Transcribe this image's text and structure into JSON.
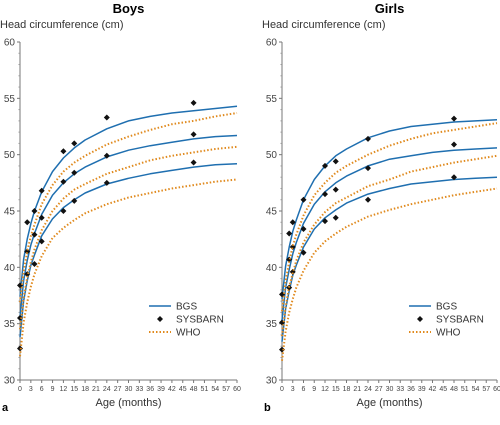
{
  "chart_data": [
    {
      "type": "line",
      "panel_label": "a",
      "title": "Boys",
      "ylabel": "Head circumference (cm)",
      "xlabel": "Age (months)",
      "xlim": [
        0,
        60
      ],
      "ylim": [
        30,
        60
      ],
      "xticks": [
        "0",
        "3",
        "6",
        "9",
        "12",
        "15",
        "18",
        "21",
        "24",
        "27",
        "30",
        "33",
        "36",
        "39",
        "42",
        "45",
        "48",
        "51",
        "54",
        "57",
        "60"
      ],
      "yticks": [
        "30",
        "35",
        "40",
        "45",
        "50",
        "55",
        "60"
      ],
      "grid": false,
      "legend_position": "bottom-right",
      "series": [
        {
          "name": "BGS",
          "style": "solid",
          "color": "#1f6fb0",
          "curves": [
            {
              "x": [
                0,
                1,
                2,
                3,
                4,
                6,
                9,
                12,
                15,
                18,
                24,
                30,
                36,
                42,
                48,
                54,
                60
              ],
              "y": [
                33.8,
                37.0,
                38.8,
                40.2,
                41.1,
                42.8,
                44.3,
                45.3,
                46.0,
                46.6,
                47.4,
                47.9,
                48.3,
                48.6,
                48.9,
                49.1,
                49.2
              ]
            },
            {
              "x": [
                0,
                1,
                2,
                3,
                4,
                6,
                9,
                12,
                15,
                18,
                24,
                30,
                36,
                42,
                48,
                54,
                60
              ],
              "y": [
                35.6,
                38.8,
                40.6,
                42.0,
                43.0,
                44.7,
                46.4,
                47.5,
                48.3,
                48.9,
                49.8,
                50.4,
                50.8,
                51.1,
                51.4,
                51.6,
                51.7
              ]
            },
            {
              "x": [
                0,
                1,
                2,
                3,
                4,
                6,
                9,
                12,
                15,
                18,
                24,
                30,
                36,
                42,
                48,
                54,
                60
              ],
              "y": [
                37.4,
                40.7,
                42.5,
                43.9,
                45.0,
                46.7,
                48.5,
                49.7,
                50.6,
                51.3,
                52.3,
                53.0,
                53.4,
                53.7,
                53.9,
                54.1,
                54.3
              ]
            }
          ]
        },
        {
          "name": "SYSBARN",
          "style": "marker",
          "color": "#111111",
          "points": [
            {
              "x": 0,
              "y": 32.8
            },
            {
              "x": 0,
              "y": 35.5
            },
            {
              "x": 0,
              "y": 38.4
            },
            {
              "x": 2,
              "y": 39.4
            },
            {
              "x": 2,
              "y": 41.4
            },
            {
              "x": 2,
              "y": 44.0
            },
            {
              "x": 4,
              "y": 40.3
            },
            {
              "x": 4,
              "y": 42.9
            },
            {
              "x": 4,
              "y": 45.0
            },
            {
              "x": 6,
              "y": 42.3
            },
            {
              "x": 6,
              "y": 44.4
            },
            {
              "x": 6,
              "y": 46.8
            },
            {
              "x": 12,
              "y": 45.0
            },
            {
              "x": 12,
              "y": 47.6
            },
            {
              "x": 12,
              "y": 50.3
            },
            {
              "x": 15,
              "y": 45.9
            },
            {
              "x": 15,
              "y": 48.4
            },
            {
              "x": 15,
              "y": 51.0
            },
            {
              "x": 24,
              "y": 47.5
            },
            {
              "x": 24,
              "y": 49.9
            },
            {
              "x": 24,
              "y": 53.3
            },
            {
              "x": 48,
              "y": 49.3
            },
            {
              "x": 48,
              "y": 51.8
            },
            {
              "x": 48,
              "y": 54.6
            }
          ]
        },
        {
          "name": "WHO",
          "style": "dotted",
          "color": "#e08a1e",
          "curves": [
            {
              "x": [
                0,
                1,
                2,
                3,
                4,
                6,
                9,
                12,
                15,
                18,
                24,
                30,
                36,
                42,
                48,
                54,
                60
              ],
              "y": [
                32.1,
                35.1,
                36.9,
                38.3,
                39.4,
                41.0,
                42.6,
                43.5,
                44.2,
                44.8,
                45.6,
                46.2,
                46.6,
                47.0,
                47.3,
                47.6,
                47.8
              ]
            },
            {
              "x": [
                0,
                1,
                2,
                3,
                4,
                6,
                9,
                12,
                15,
                18,
                24,
                30,
                36,
                42,
                48,
                54,
                60
              ],
              "y": [
                34.5,
                37.3,
                39.1,
                40.5,
                41.6,
                43.3,
                45.0,
                46.1,
                46.9,
                47.4,
                48.3,
                48.9,
                49.5,
                49.9,
                50.2,
                50.5,
                50.7
              ]
            },
            {
              "x": [
                0,
                1,
                2,
                3,
                4,
                6,
                9,
                12,
                15,
                18,
                24,
                30,
                36,
                42,
                48,
                54,
                60
              ],
              "y": [
                36.9,
                39.6,
                41.4,
                42.8,
                43.8,
                45.6,
                47.3,
                48.5,
                49.3,
                49.9,
                50.9,
                51.6,
                52.2,
                52.7,
                53.0,
                53.4,
                53.7
              ]
            }
          ]
        }
      ]
    },
    {
      "type": "line",
      "panel_label": "b",
      "title": "Girls",
      "ylabel": "Head circumference (cm)",
      "xlabel": "Age (months)",
      "xlim": [
        0,
        60
      ],
      "ylim": [
        30,
        60
      ],
      "xticks": [
        "0",
        "3",
        "6",
        "9",
        "12",
        "15",
        "18",
        "21",
        "24",
        "27",
        "30",
        "33",
        "36",
        "39",
        "42",
        "45",
        "48",
        "51",
        "54",
        "57",
        "60"
      ],
      "yticks": [
        "30",
        "35",
        "40",
        "45",
        "50",
        "55",
        "60"
      ],
      "grid": false,
      "legend_position": "bottom-right",
      "series": [
        {
          "name": "BGS",
          "style": "solid",
          "color": "#1f6fb0",
          "curves": [
            {
              "x": [
                0,
                1,
                2,
                3,
                4,
                6,
                9,
                12,
                15,
                18,
                24,
                30,
                36,
                42,
                48,
                54,
                60
              ],
              "y": [
                33.4,
                36.3,
                37.9,
                39.3,
                40.2,
                41.8,
                43.4,
                44.4,
                45.1,
                45.7,
                46.5,
                47.0,
                47.4,
                47.6,
                47.8,
                47.9,
                48.0
              ]
            },
            {
              "x": [
                0,
                1,
                2,
                3,
                4,
                6,
                9,
                12,
                15,
                18,
                24,
                30,
                36,
                42,
                48,
                54,
                60
              ],
              "y": [
                35.3,
                38.2,
                39.8,
                41.2,
                42.2,
                43.9,
                45.6,
                46.7,
                47.5,
                48.1,
                49.0,
                49.6,
                49.9,
                50.2,
                50.4,
                50.5,
                50.6
              ]
            },
            {
              "x": [
                0,
                1,
                2,
                3,
                4,
                6,
                9,
                12,
                15,
                18,
                24,
                30,
                36,
                42,
                48,
                54,
                60
              ],
              "y": [
                37.2,
                40.1,
                41.8,
                43.2,
                44.2,
                46.0,
                47.8,
                49.0,
                49.9,
                50.5,
                51.5,
                52.1,
                52.5,
                52.7,
                52.9,
                53.0,
                53.1
              ]
            }
          ]
        },
        {
          "name": "SYSBARN",
          "style": "marker",
          "color": "#111111",
          "points": [
            {
              "x": 0,
              "y": 32.7
            },
            {
              "x": 0,
              "y": 35.1
            },
            {
              "x": 0,
              "y": 37.6
            },
            {
              "x": 2,
              "y": 38.2
            },
            {
              "x": 2,
              "y": 40.7
            },
            {
              "x": 2,
              "y": 43.0
            },
            {
              "x": 3,
              "y": 39.6
            },
            {
              "x": 3,
              "y": 41.8
            },
            {
              "x": 3,
              "y": 44.0
            },
            {
              "x": 6,
              "y": 41.3
            },
            {
              "x": 6,
              "y": 43.4
            },
            {
              "x": 6,
              "y": 46.0
            },
            {
              "x": 12,
              "y": 44.1
            },
            {
              "x": 12,
              "y": 46.5
            },
            {
              "x": 12,
              "y": 49.0
            },
            {
              "x": 15,
              "y": 44.4
            },
            {
              "x": 15,
              "y": 46.9
            },
            {
              "x": 15,
              "y": 49.4
            },
            {
              "x": 24,
              "y": 46.0
            },
            {
              "x": 24,
              "y": 48.8
            },
            {
              "x": 24,
              "y": 51.4
            },
            {
              "x": 48,
              "y": 48.0
            },
            {
              "x": 48,
              "y": 50.9
            },
            {
              "x": 48,
              "y": 53.2
            }
          ]
        },
        {
          "name": "WHO",
          "style": "dotted",
          "color": "#e08a1e",
          "curves": [
            {
              "x": [
                0,
                1,
                2,
                3,
                4,
                6,
                9,
                12,
                15,
                18,
                24,
                30,
                36,
                42,
                48,
                54,
                60
              ],
              "y": [
                31.7,
                34.3,
                36.0,
                37.2,
                38.2,
                39.7,
                41.3,
                42.3,
                43.0,
                43.6,
                44.5,
                45.1,
                45.6,
                46.0,
                46.4,
                46.7,
                47.0
              ]
            },
            {
              "x": [
                0,
                1,
                2,
                3,
                4,
                6,
                9,
                12,
                15,
                18,
                24,
                30,
                36,
                42,
                48,
                54,
                60
              ],
              "y": [
                33.9,
                36.5,
                38.3,
                39.5,
                40.6,
                42.2,
                43.8,
                44.9,
                45.7,
                46.2,
                47.2,
                47.8,
                48.5,
                48.9,
                49.3,
                49.6,
                49.9
              ]
            },
            {
              "x": [
                0,
                1,
                2,
                3,
                4,
                6,
                9,
                12,
                15,
                18,
                24,
                30,
                36,
                42,
                48,
                54,
                60
              ],
              "y": [
                36.1,
                38.8,
                40.5,
                41.9,
                42.9,
                44.6,
                46.4,
                47.5,
                48.4,
                49.0,
                50.0,
                50.8,
                51.4,
                51.9,
                52.2,
                52.5,
                52.8
              ]
            }
          ]
        }
      ]
    }
  ]
}
